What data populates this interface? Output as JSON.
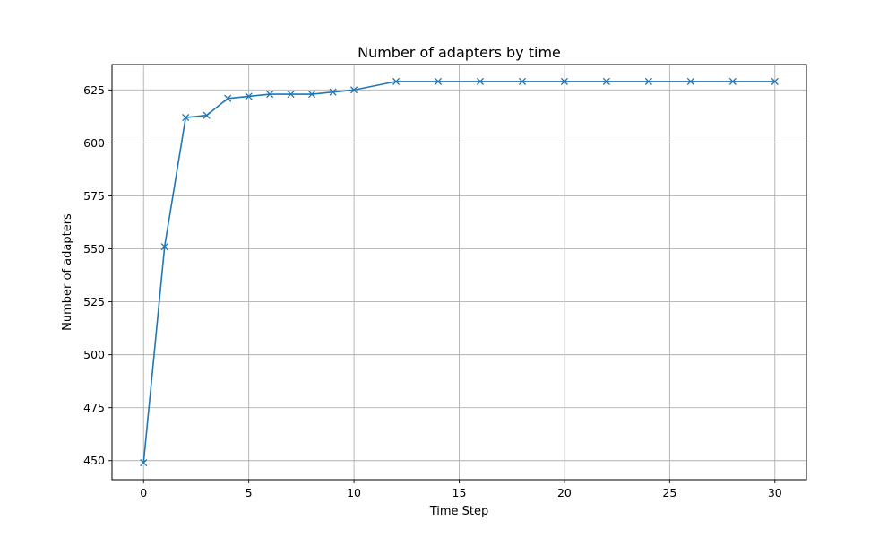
{
  "chart_data": {
    "type": "line",
    "title": "Number of adapters by time",
    "xlabel": "Time Step",
    "ylabel": "Number of adapters",
    "xlim": [
      -1.5,
      31.5
    ],
    "ylim": [
      441,
      637
    ],
    "xticks": [
      0,
      5,
      10,
      15,
      20,
      25,
      30
    ],
    "xtick_labels": [
      "0",
      "5",
      "10",
      "15",
      "20",
      "25",
      "30"
    ],
    "yticks": [
      450,
      475,
      500,
      525,
      550,
      575,
      600,
      625
    ],
    "ytick_labels": [
      "450",
      "475",
      "500",
      "525",
      "550",
      "575",
      "600",
      "625"
    ],
    "grid": true,
    "marker": "x",
    "color": "#1f77b4",
    "series": [
      {
        "x": [
          0,
          1,
          2,
          3,
          4,
          5,
          6,
          7,
          8,
          9,
          10,
          12,
          14,
          16,
          18,
          20,
          22,
          24,
          26,
          28,
          30
        ],
        "y": [
          449,
          551,
          612,
          613,
          621,
          622,
          623,
          623,
          623,
          624,
          625,
          629,
          629,
          629,
          629,
          629,
          629,
          629,
          629,
          629,
          629
        ]
      }
    ]
  }
}
